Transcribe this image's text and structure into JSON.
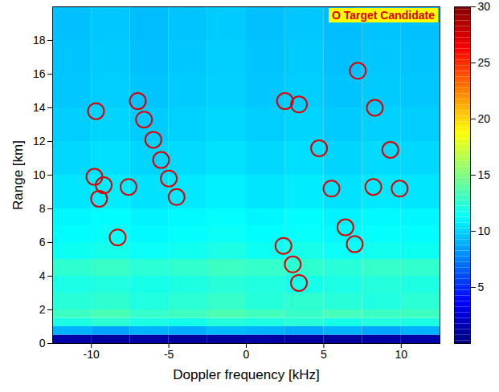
{
  "chart_data": {
    "type": "heatmap",
    "xlabel": "Doppler frequency [kHz]",
    "ylabel": "Range [km]",
    "xlim": [
      -12.5,
      12.5
    ],
    "xticks": [
      -10,
      -5,
      0,
      5,
      10
    ],
    "ylim": [
      0,
      20
    ],
    "yticks": [
      0,
      2,
      4,
      6,
      8,
      10,
      12,
      14,
      16,
      18
    ],
    "grid": false,
    "legend": "upper right",
    "heatmap": {
      "x_edges": [
        -12.5,
        -10,
        -7.5,
        -5,
        -2.5,
        0,
        2.5,
        5,
        7.5,
        10,
        12.5
      ],
      "y_edges": [
        0,
        0.5,
        1,
        1.5,
        2,
        3,
        4,
        5,
        6,
        7,
        8,
        10,
        12,
        14,
        16,
        18,
        20
      ],
      "values": [
        [
          1.2,
          1.0,
          1.1,
          0.9,
          1.0,
          1.1,
          1.0,
          0.9,
          1.1,
          1.2
        ],
        [
          9,
          8.5,
          9,
          8.8,
          9.2,
          9,
          8.7,
          9,
          8.6,
          9
        ],
        [
          12,
          12.5,
          12,
          11.8,
          12.3,
          12.1,
          12.4,
          11.9,
          12.2,
          12
        ],
        [
          13,
          13.4,
          12.8,
          13.1,
          13.5,
          13.2,
          12.9,
          13.3,
          13,
          13.1
        ],
        [
          12.4,
          12.6,
          12.2,
          12.5,
          12.8,
          12.3,
          12.6,
          12.4,
          12.2,
          12.5
        ],
        [
          12,
          12.2,
          11.9,
          12.1,
          12.4,
          12.2,
          11.8,
          12,
          12.3,
          12.1
        ],
        [
          12.6,
          12.9,
          12.5,
          12.7,
          13,
          12.8,
          12.6,
          12.4,
          12.8,
          12.7
        ],
        [
          11.6,
          11.8,
          11.5,
          11.7,
          12,
          11.6,
          11.9,
          11.5,
          11.7,
          11.6
        ],
        [
          11.2,
          11.4,
          11.1,
          11.3,
          11.5,
          11.2,
          11.4,
          11.1,
          11.3,
          11.2
        ],
        [
          11,
          11.2,
          10.9,
          11.1,
          11.3,
          11,
          11.2,
          10.9,
          11.1,
          11
        ],
        [
          10.5,
          10.7,
          10.4,
          10.6,
          10.8,
          10.5,
          10.7,
          10.4,
          10.6,
          10.5
        ],
        [
          10.1,
          10.3,
          10,
          10.2,
          10.4,
          10.1,
          10.3,
          10,
          10.2,
          10.1
        ],
        [
          9.8,
          10,
          9.7,
          9.9,
          10.1,
          9.8,
          10,
          9.7,
          9.9,
          9.8
        ],
        [
          9.6,
          9.8,
          9.5,
          9.7,
          9.9,
          9.6,
          9.8,
          9.5,
          9.7,
          9.6
        ],
        [
          9.5,
          9.7,
          9.4,
          9.6,
          9.8,
          9.5,
          9.7,
          9.4,
          9.6,
          9.5
        ],
        [
          9.4,
          9.6,
          9.3,
          9.5,
          9.7,
          9.4,
          9.6,
          9.3,
          9.5,
          9.4
        ]
      ]
    },
    "colorbar": {
      "range": [
        0,
        30
      ],
      "ticks": [
        5,
        10,
        15,
        20,
        25,
        30
      ]
    },
    "series": [
      {
        "name": "O Target Candidate",
        "type": "scatter",
        "marker": "circle",
        "color": "#e00000",
        "x": [
          -9.7,
          -7.0,
          -6.6,
          -6.0,
          -5.5,
          -5.0,
          -4.5,
          -9.8,
          -9.2,
          -9.5,
          -7.6,
          -8.3,
          2.5,
          3.4,
          4.7,
          7.2,
          8.3,
          9.3,
          5.5,
          8.2,
          9.9,
          6.4,
          7.0,
          2.4,
          3.0,
          3.4
        ],
        "y": [
          13.8,
          14.4,
          13.3,
          12.1,
          10.9,
          9.8,
          8.7,
          9.9,
          9.4,
          8.6,
          9.3,
          6.3,
          14.4,
          14.2,
          11.6,
          16.2,
          14.0,
          11.5,
          9.2,
          9.3,
          9.2,
          6.9,
          5.9,
          5.8,
          4.7,
          3.6
        ]
      }
    ]
  }
}
